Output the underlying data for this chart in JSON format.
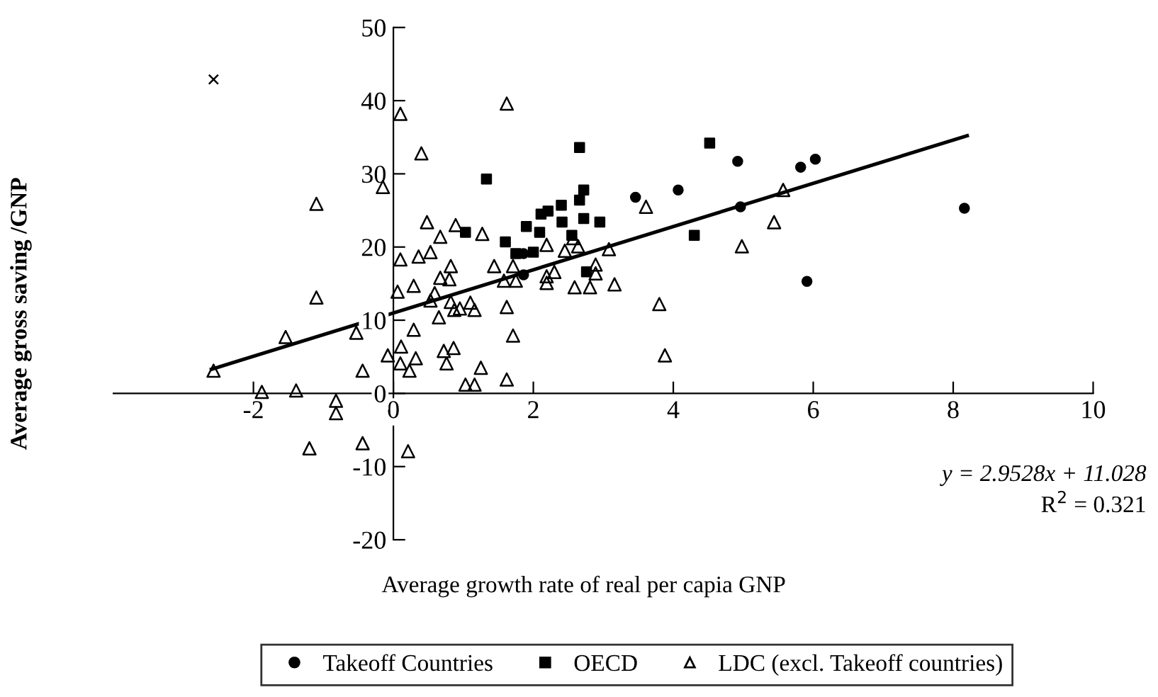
{
  "chart_data": {
    "type": "scatter",
    "xlabel": "Average growth rate of real per capia GNP",
    "ylabel": "Average gross saving /GNP",
    "xlim": [
      -4,
      10
    ],
    "ylim": [
      -20,
      50
    ],
    "xticks": [
      -2,
      0,
      2,
      4,
      6,
      8,
      10
    ],
    "yticks": [
      -20,
      -10,
      0,
      10,
      20,
      30,
      40,
      50
    ],
    "grid": false,
    "legend": "bottom",
    "annotations": [
      "y = 2.9528x + 11.028",
      "R$^{2}$ = 0.321"
    ],
    "series": [
      {
        "name": "Takeoff Countries",
        "color": "#000000",
        "marker": "circle",
        "x": [
          4.92,
          5.82,
          6.03,
          4.96,
          5.91,
          8.16,
          4.07,
          3.46,
          1.86,
          1.86
        ],
        "values": [
          31.7,
          30.9,
          32.0,
          25.5,
          15.3,
          25.3,
          27.8,
          26.8,
          19.1,
          16.2
        ]
      },
      {
        "name": "OECD",
        "color": "#000000",
        "marker": "square",
        "x": [
          4.52,
          4.3,
          2.66,
          2.72,
          2.66,
          2.11,
          2.21,
          2.4,
          2.41,
          2.72,
          2.95,
          1.9,
          2.09,
          2.55,
          2.76,
          1.33,
          1.03,
          1.6,
          1.75,
          2.0
        ],
        "values": [
          34.2,
          21.6,
          33.6,
          27.8,
          26.4,
          24.5,
          24.9,
          25.7,
          23.4,
          23.9,
          23.4,
          22.8,
          22.0,
          21.6,
          16.6,
          29.3,
          22.0,
          20.7,
          19.1,
          19.3
        ]
      },
      {
        "name": "LDC (excl. Takeoff countries)",
        "color": "#000000",
        "marker": "triangle",
        "x": [
          5.57,
          5.44,
          4.98,
          3.61,
          2.19,
          2.45,
          2.64,
          2.57,
          3.08,
          2.89,
          2.89,
          2.59,
          2.81,
          3.16,
          2.19,
          2.19,
          2.3,
          3.8,
          3.88,
          0.1,
          1.62,
          0.4,
          0.48,
          0.67,
          0.89,
          1.27,
          0.1,
          0.36,
          0.53,
          0.82,
          0.67,
          0.8,
          1.44,
          1.71,
          1.75,
          1.58,
          0.06,
          0.29,
          0.59,
          0.53,
          0.82,
          0.95,
          1.1,
          1.16,
          0.87,
          0.65,
          1.62,
          0.29,
          1.71,
          0.11,
          -0.08,
          0.1,
          0.23,
          0.32,
          0.72,
          0.86,
          0.76,
          1.25,
          1.03,
          1.16,
          1.62,
          -0.15,
          -1.1,
          -1.1,
          -1.54,
          -0.53,
          -2.57,
          -0.44,
          -1.88,
          -1.39,
          -0.82,
          -0.82,
          -1.2,
          -0.44,
          0.21
        ],
        "values": [
          27.8,
          23.4,
          20.1,
          25.5,
          20.3,
          19.5,
          20.1,
          21.2,
          19.7,
          17.6,
          16.4,
          14.5,
          14.5,
          14.9,
          16.0,
          15.1,
          16.6,
          12.2,
          5.2,
          38.2,
          39.6,
          32.8,
          23.4,
          21.4,
          23.0,
          21.8,
          18.3,
          18.7,
          19.3,
          17.4,
          15.8,
          15.6,
          17.4,
          17.4,
          15.4,
          15.4,
          13.9,
          14.7,
          13.7,
          12.7,
          12.5,
          11.6,
          12.4,
          11.4,
          11.4,
          10.4,
          11.8,
          8.7,
          7.9,
          6.4,
          5.2,
          4.1,
          3.1,
          4.8,
          5.8,
          6.2,
          4.1,
          3.5,
          1.2,
          1.2,
          1.9,
          28.2,
          25.9,
          13.1,
          7.7,
          8.3,
          3.1,
          3.1,
          0.2,
          0.4,
          -1.0,
          -2.7,
          -7.5,
          -6.8,
          -7.9
        ]
      },
      {
        "color": "#000000",
        "marker": "cross",
        "x": [
          -2.57
        ],
        "values": [
          42.9
        ]
      },
      {
        "type": "line",
        "color": "#000000",
        "marker": "none",
        "line_style": "solid",
        "x": [
          -2.6,
          8.2
        ],
        "values": [
          3.3,
          35.2
        ]
      }
    ]
  }
}
